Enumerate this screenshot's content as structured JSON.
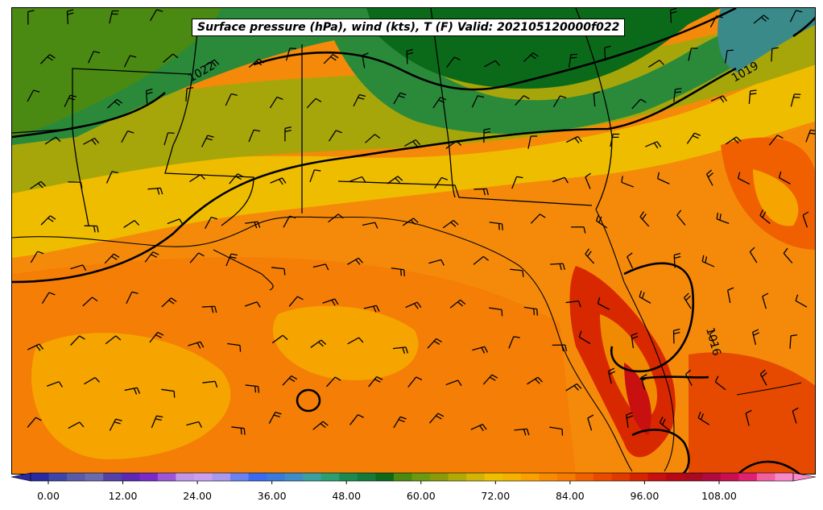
{
  "title": "Surface pressure (hPa), wind (kts), T (F) Valid: 202105120000f022",
  "colors": {
    "cold_ramp": [
      "#2a2aa0",
      "#3c46a8",
      "#5a5aaa",
      "#6a6ab0",
      "#5340a8",
      "#5a2ab4",
      "#7a2ac8",
      "#9a58d8",
      "#c096e8",
      "#c8a0f0",
      "#a898f0",
      "#6a82f0",
      "#3a6af0",
      "#3a7ad8",
      "#3d8cc8",
      "#3aa0a0",
      "#2aa070",
      "#1a8a50",
      "#127a3a",
      "#0b6a1a"
    ],
    "warm_ramp": [
      "#4a8a10",
      "#6a9a10",
      "#8c9a0a",
      "#b0aa08",
      "#d2b406",
      "#eebe00",
      "#f6b200",
      "#f8a000",
      "#f88a00",
      "#f67a00",
      "#f06000",
      "#e84a00",
      "#e03a00",
      "#d42400",
      "#c81010",
      "#b80818",
      "#a80a22",
      "#b00a40",
      "#c81050",
      "#e02070",
      "#f060a0",
      "#f888c8"
    ],
    "contour": "#000000",
    "land_outline": "#000000"
  },
  "colorbar": {
    "ticks": [
      "0.00",
      "12.00",
      "24.00",
      "36.00",
      "48.00",
      "60.00",
      "72.00",
      "84.00",
      "96.00",
      "108.00"
    ]
  },
  "isobar_labels": [
    "1022",
    "1019",
    "1016"
  ]
}
